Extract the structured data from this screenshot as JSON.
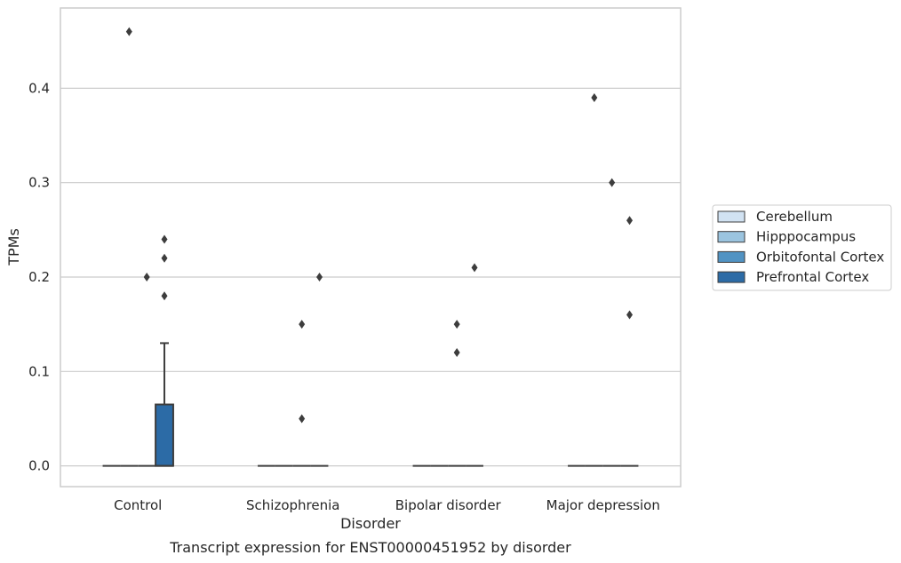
{
  "caption": "Transcript expression for ENST00000451952 by disorder",
  "chart_data": {
    "type": "box",
    "xlabel": "Disorder",
    "ylabel": "TPMs",
    "categories": [
      "Control",
      "Schizophrenia",
      "Bipolar disorder",
      "Major depression"
    ],
    "yticks": [
      "0.0",
      "0.1",
      "0.2",
      "0.3",
      "0.4"
    ],
    "ylim": [
      -0.022,
      0.485
    ],
    "grid": "horizontal",
    "legend_position": "right",
    "series": [
      {
        "name": "Cerebellum",
        "color": "#d1e2f2",
        "boxes": [
          {
            "q1": 0,
            "median": 0,
            "q3": 0,
            "whisker_low": 0,
            "whisker_high": 0,
            "outliers": []
          },
          {
            "q1": 0,
            "median": 0,
            "q3": 0,
            "whisker_low": 0,
            "whisker_high": 0,
            "outliers": []
          },
          {
            "q1": 0,
            "median": 0,
            "q3": 0,
            "whisker_low": 0,
            "whisker_high": 0,
            "outliers": []
          },
          {
            "q1": 0,
            "median": 0,
            "q3": 0,
            "whisker_low": 0,
            "whisker_high": 0,
            "outliers": []
          }
        ]
      },
      {
        "name": "Hipppocampus",
        "color": "#9bc4df",
        "boxes": [
          {
            "q1": 0,
            "median": 0,
            "q3": 0,
            "whisker_low": 0,
            "whisker_high": 0,
            "outliers": [
              0.46
            ]
          },
          {
            "q1": 0,
            "median": 0,
            "q3": 0,
            "whisker_low": 0,
            "whisker_high": 0,
            "outliers": []
          },
          {
            "q1": 0,
            "median": 0,
            "q3": 0,
            "whisker_low": 0,
            "whisker_high": 0,
            "outliers": []
          },
          {
            "q1": 0,
            "median": 0,
            "q3": 0,
            "whisker_low": 0,
            "whisker_high": 0,
            "outliers": [
              0.39
            ]
          }
        ]
      },
      {
        "name": "Orbitofontal Cortex",
        "color": "#5193c3",
        "boxes": [
          {
            "q1": 0,
            "median": 0,
            "q3": 0,
            "whisker_low": 0,
            "whisker_high": 0,
            "outliers": [
              0.2
            ]
          },
          {
            "q1": 0,
            "median": 0,
            "q3": 0,
            "whisker_low": 0,
            "whisker_high": 0,
            "outliers": [
              0.15,
              0.05
            ]
          },
          {
            "q1": 0,
            "median": 0,
            "q3": 0,
            "whisker_low": 0,
            "whisker_high": 0,
            "outliers": [
              0.15,
              0.12
            ]
          },
          {
            "q1": 0,
            "median": 0,
            "q3": 0,
            "whisker_low": 0,
            "whisker_high": 0,
            "outliers": [
              0.3
            ]
          }
        ]
      },
      {
        "name": "Prefrontal Cortex",
        "color": "#2c6ba6",
        "boxes": [
          {
            "q1": 0,
            "median": 0,
            "q3": 0.065,
            "whisker_low": 0,
            "whisker_high": 0.13,
            "outliers": [
              0.24,
              0.22,
              0.18
            ]
          },
          {
            "q1": 0,
            "median": 0,
            "q3": 0,
            "whisker_low": 0,
            "whisker_high": 0,
            "outliers": [
              0.2
            ]
          },
          {
            "q1": 0,
            "median": 0,
            "q3": 0,
            "whisker_low": 0,
            "whisker_high": 0,
            "outliers": [
              0.21
            ]
          },
          {
            "q1": 0,
            "median": 0,
            "q3": 0,
            "whisker_low": 0,
            "whisker_high": 0,
            "outliers": [
              0.26,
              0.16
            ]
          }
        ]
      }
    ]
  }
}
